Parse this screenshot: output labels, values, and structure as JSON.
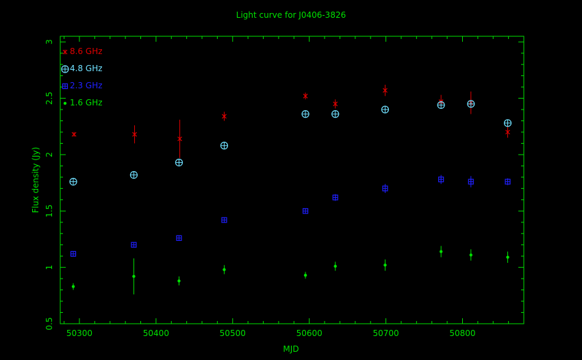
{
  "chart_data": {
    "type": "scatter",
    "title": "Light curve for J0406-3826",
    "xlabel": "MJD",
    "ylabel": "Flux density (Jy)",
    "xlim": [
      50275,
      50880
    ],
    "ylim": [
      0.5,
      3.05
    ],
    "xticks": [
      50300,
      50400,
      50500,
      50600,
      50700,
      50800
    ],
    "yticks": [
      0.5,
      1,
      1.5,
      2,
      2.5,
      3
    ],
    "grid": false,
    "legend": "top-left",
    "axis_color": "#00e000",
    "series": [
      {
        "name": "8.6 GHz",
        "color": "#e00000",
        "marker": "x",
        "points": [
          {
            "x": 50293,
            "y": 2.18,
            "err": 0.0
          },
          {
            "x": 50372,
            "y": 2.18,
            "err": 0.08
          },
          {
            "x": 50431,
            "y": 2.14,
            "err": 0.17
          },
          {
            "x": 50489,
            "y": 2.34,
            "err": 0.04
          },
          {
            "x": 50595,
            "y": 2.52,
            "err": 0.03
          },
          {
            "x": 50634,
            "y": 2.45,
            "err": 0.04
          },
          {
            "x": 50699,
            "y": 2.57,
            "err": 0.05
          },
          {
            "x": 50772,
            "y": 2.47,
            "err": 0.06
          },
          {
            "x": 50811,
            "y": 2.46,
            "err": 0.1
          },
          {
            "x": 50859,
            "y": 2.2,
            "err": 0.05
          }
        ]
      },
      {
        "name": "4.8 GHz",
        "color": "#70e0ff",
        "marker": "circle-plus",
        "points": [
          {
            "x": 50292,
            "y": 1.76,
            "err": 0.0
          },
          {
            "x": 50371,
            "y": 1.82,
            "err": 0.0
          },
          {
            "x": 50430,
            "y": 1.93,
            "err": 0.02
          },
          {
            "x": 50489,
            "y": 2.08,
            "err": 0.0
          },
          {
            "x": 50595,
            "y": 2.36,
            "err": 0.0
          },
          {
            "x": 50634,
            "y": 2.36,
            "err": 0.0
          },
          {
            "x": 50699,
            "y": 2.4,
            "err": 0.0
          },
          {
            "x": 50772,
            "y": 2.44,
            "err": 0.0
          },
          {
            "x": 50811,
            "y": 2.45,
            "err": 0.0
          },
          {
            "x": 50859,
            "y": 2.28,
            "err": 0.0
          }
        ]
      },
      {
        "name": "2.3 GHz",
        "color": "#2020ff",
        "marker": "square-plus",
        "points": [
          {
            "x": 50292,
            "y": 1.12,
            "err": 0.0
          },
          {
            "x": 50371,
            "y": 1.2,
            "err": 0.0
          },
          {
            "x": 50430,
            "y": 1.26,
            "err": 0.0
          },
          {
            "x": 50489,
            "y": 1.42,
            "err": 0.0
          },
          {
            "x": 50595,
            "y": 1.5,
            "err": 0.02
          },
          {
            "x": 50634,
            "y": 1.62,
            "err": 0.03
          },
          {
            "x": 50699,
            "y": 1.7,
            "err": 0.04
          },
          {
            "x": 50772,
            "y": 1.78,
            "err": 0.04
          },
          {
            "x": 50811,
            "y": 1.76,
            "err": 0.05
          },
          {
            "x": 50859,
            "y": 1.76,
            "err": 0.03
          }
        ]
      },
      {
        "name": "1.6 GHz",
        "color": "#00e000",
        "marker": "dot",
        "points": [
          {
            "x": 50292,
            "y": 0.83,
            "err": 0.03
          },
          {
            "x": 50371,
            "y": 0.92,
            "err": 0.16
          },
          {
            "x": 50430,
            "y": 0.88,
            "err": 0.04
          },
          {
            "x": 50489,
            "y": 0.98,
            "err": 0.04
          },
          {
            "x": 50595,
            "y": 0.93,
            "err": 0.03
          },
          {
            "x": 50634,
            "y": 1.01,
            "err": 0.04
          },
          {
            "x": 50699,
            "y": 1.02,
            "err": 0.05
          },
          {
            "x": 50772,
            "y": 1.14,
            "err": 0.05
          },
          {
            "x": 50811,
            "y": 1.11,
            "err": 0.05
          },
          {
            "x": 50859,
            "y": 1.09,
            "err": 0.05
          }
        ]
      }
    ]
  }
}
